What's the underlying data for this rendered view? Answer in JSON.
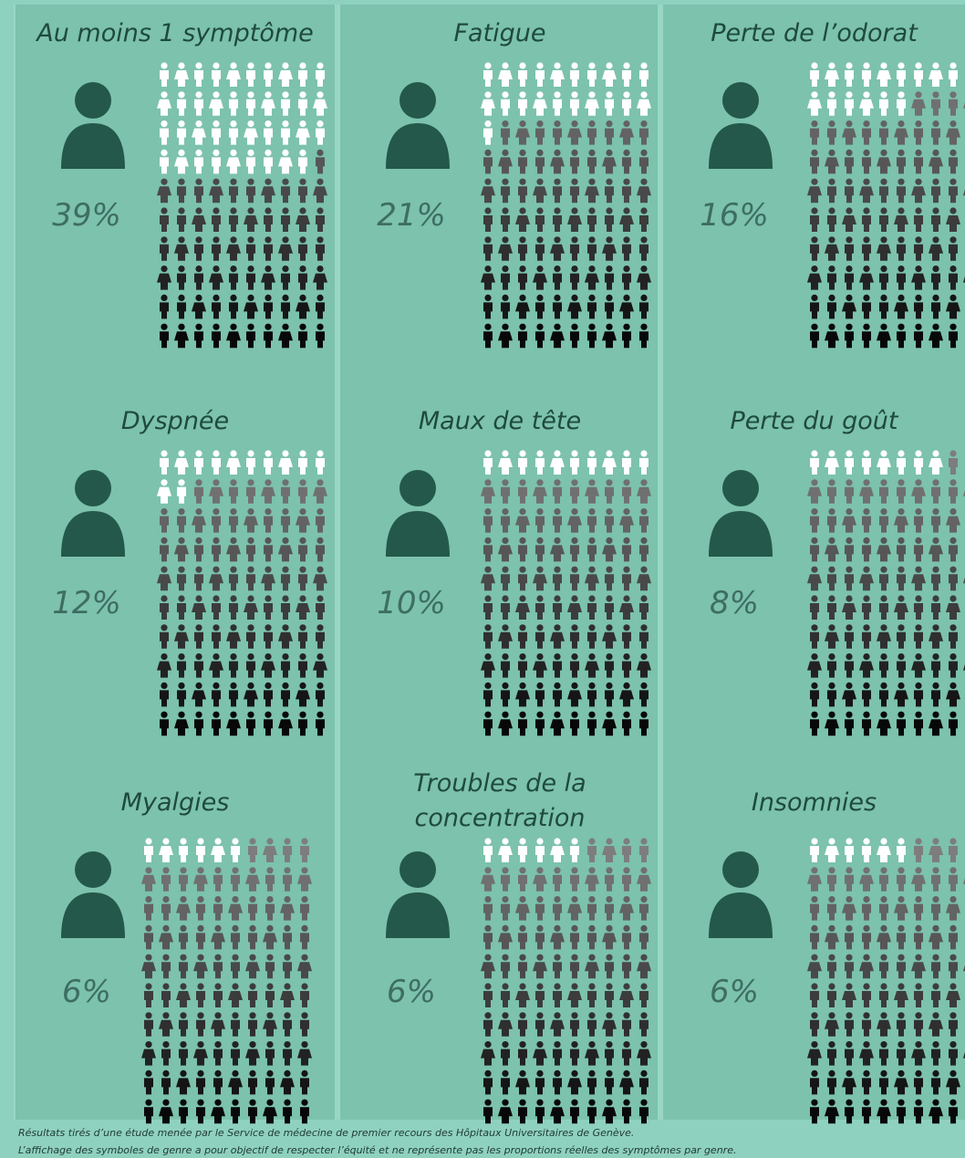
{
  "chart_data": [
    {
      "type": "waffle",
      "title": "Au moins 1 symptôme",
      "values": [
        39
      ],
      "value_labels": [
        "39%"
      ]
    },
    {
      "type": "waffle",
      "title": "Fatigue",
      "values": [
        21
      ],
      "value_labels": [
        "21%"
      ]
    },
    {
      "type": "waffle",
      "title": "Perte de l’odorat",
      "values": [
        16
      ],
      "value_labels": [
        "16%"
      ]
    },
    {
      "type": "waffle",
      "title": "Dyspnée",
      "values": [
        12
      ],
      "value_labels": [
        "12%"
      ]
    },
    {
      "type": "waffle",
      "title": "Maux de tête",
      "values": [
        10
      ],
      "value_labels": [
        "10%"
      ]
    },
    {
      "type": "waffle",
      "title": "Perte du goût",
      "values": [
        8
      ],
      "value_labels": [
        "8%"
      ]
    },
    {
      "type": "waffle",
      "title": "Myalgies",
      "values": [
        6
      ],
      "value_labels": [
        "6%"
      ]
    },
    {
      "type": "waffle",
      "title": [
        "Troubles de la",
        "concentration"
      ],
      "values": [
        6
      ],
      "value_labels": [
        "6%"
      ]
    },
    {
      "type": "waffle",
      "title": "Insomnies",
      "values": [
        6
      ],
      "value_labels": [
        "6%"
      ]
    }
  ],
  "footnotes": [
    "Résultats tirés d’une étude menée par le Service de médecine de premier recours des Hôpitaux Universitaires de Genève.",
    "L’affichage des symboles de genre a pour objectif de respecter l’équité et ne représente pas les proportions réelles des symptômes par genre."
  ]
}
